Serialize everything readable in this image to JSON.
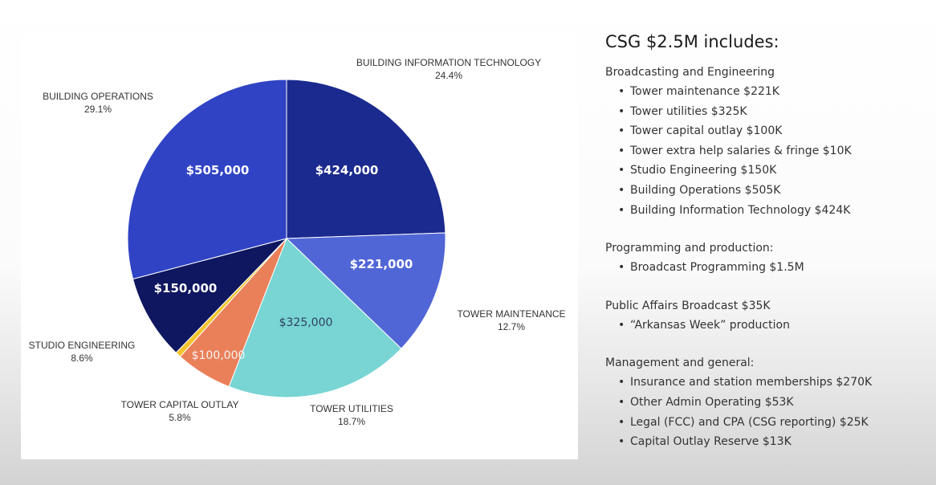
{
  "chart_data": {
    "type": "pie",
    "slices": [
      {
        "category": "BUILDING INFORMATION TECHNOLOGY",
        "percent": "24.4%",
        "value": 424000,
        "value_label": "$424,000",
        "color": "#1b2a8e"
      },
      {
        "category": "TOWER MAINTENANCE",
        "percent": "12.7%",
        "value": 221000,
        "value_label": "$221,000",
        "color": "#5166d6"
      },
      {
        "category": "TOWER UTILITIES",
        "percent": "18.7%",
        "value": 325000,
        "value_label": "$325,000",
        "color": "#78d5d4"
      },
      {
        "category": "TOWER CAPITAL OUTLAY",
        "percent": "5.8%",
        "value": 100000,
        "value_label": "$100,000",
        "color": "#ea805a"
      },
      {
        "category": "",
        "percent": "",
        "value": 10000,
        "value_label": "",
        "color": "#f3c42e"
      },
      {
        "category": "STUDIO ENGINEERING",
        "percent": "8.6%",
        "value": 150000,
        "value_label": "$150,000",
        "color": "#0f1760"
      },
      {
        "category": "BUILDING OPERATIONS",
        "percent": "29.1%",
        "value": 505000,
        "value_label": "$505,000",
        "color": "#3043c4"
      }
    ]
  },
  "summary": {
    "title": "CSG $2.5M includes:",
    "sections": [
      {
        "heading": "Broadcasting and Engineering",
        "items": [
          "Tower maintenance $221K",
          "Tower utilities $325K",
          "Tower capital outlay $100K",
          "Tower extra help salaries & fringe $10K",
          "Studio Engineering $150K",
          "Building Operations $505K",
          "Building Information Technology $424K"
        ]
      },
      {
        "heading": "Programming and production:",
        "items": [
          "Broadcast Programming $1.5M"
        ]
      },
      {
        "heading": "Public Affairs Broadcast $35K",
        "items": [
          "“Arkansas Week” production"
        ]
      },
      {
        "heading": "Management and general:",
        "items": [
          "Insurance and station memberships $270K",
          "Other Admin Operating $53K",
          "Legal (FCC) and CPA (CSG reporting) $25K",
          "Capital Outlay Reserve $13K"
        ]
      }
    ]
  }
}
